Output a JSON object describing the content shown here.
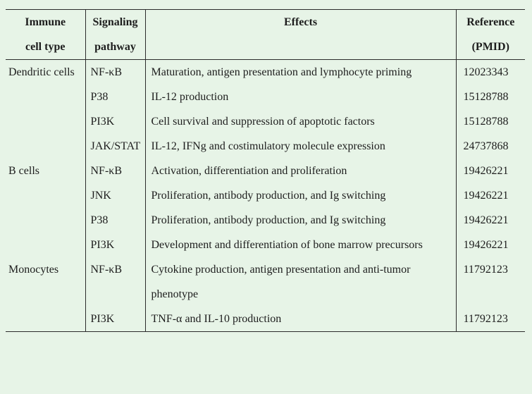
{
  "page": {
    "background_color": "#e7f4e7",
    "text_color": "#1d1d1d",
    "rule_color": "#2b2b2b"
  },
  "table": {
    "headers": [
      "Immune\ncell type",
      "Signaling\npathway",
      "Effects",
      "Reference\n(PMID)"
    ],
    "rows": [
      {
        "cell_type": "Dendritic cells",
        "pathway": "NF-κB",
        "effect": "Maturation, antigen presentation and lymphocyte priming",
        "pmid": "12023343"
      },
      {
        "cell_type": "",
        "pathway": "P38",
        "effect": "IL-12 production",
        "pmid": "15128788"
      },
      {
        "cell_type": "",
        "pathway": "PI3K",
        "effect": "Cell survival and suppression of apoptotic factors",
        "pmid": "15128788"
      },
      {
        "cell_type": "",
        "pathway": "JAK/STAT",
        "effect": "IL-12, IFNg and costimulatory molecule expression",
        "pmid": "24737868"
      },
      {
        "cell_type": "B cells",
        "pathway": "NF-κB",
        "effect": "Activation, differentiation and proliferation",
        "pmid": "19426221"
      },
      {
        "cell_type": "",
        "pathway": "JNK",
        "effect": "Proliferation, antibody production, and Ig switching",
        "pmid": "19426221"
      },
      {
        "cell_type": "",
        "pathway": "P38",
        "effect": "Proliferation, antibody production, and Ig switching",
        "pmid": "19426221"
      },
      {
        "cell_type": "",
        "pathway": "PI3K",
        "effect": "Development and differentiation of bone marrow precursors",
        "pmid": "19426221"
      },
      {
        "cell_type": "Monocytes",
        "pathway": "NF-κB",
        "effect": "Cytokine production, antigen presentation and anti-tumor phenotype",
        "pmid": "11792123"
      },
      {
        "cell_type": "",
        "pathway": "PI3K",
        "effect": "TNF-α and IL-10 production",
        "pmid": "11792123"
      }
    ]
  }
}
